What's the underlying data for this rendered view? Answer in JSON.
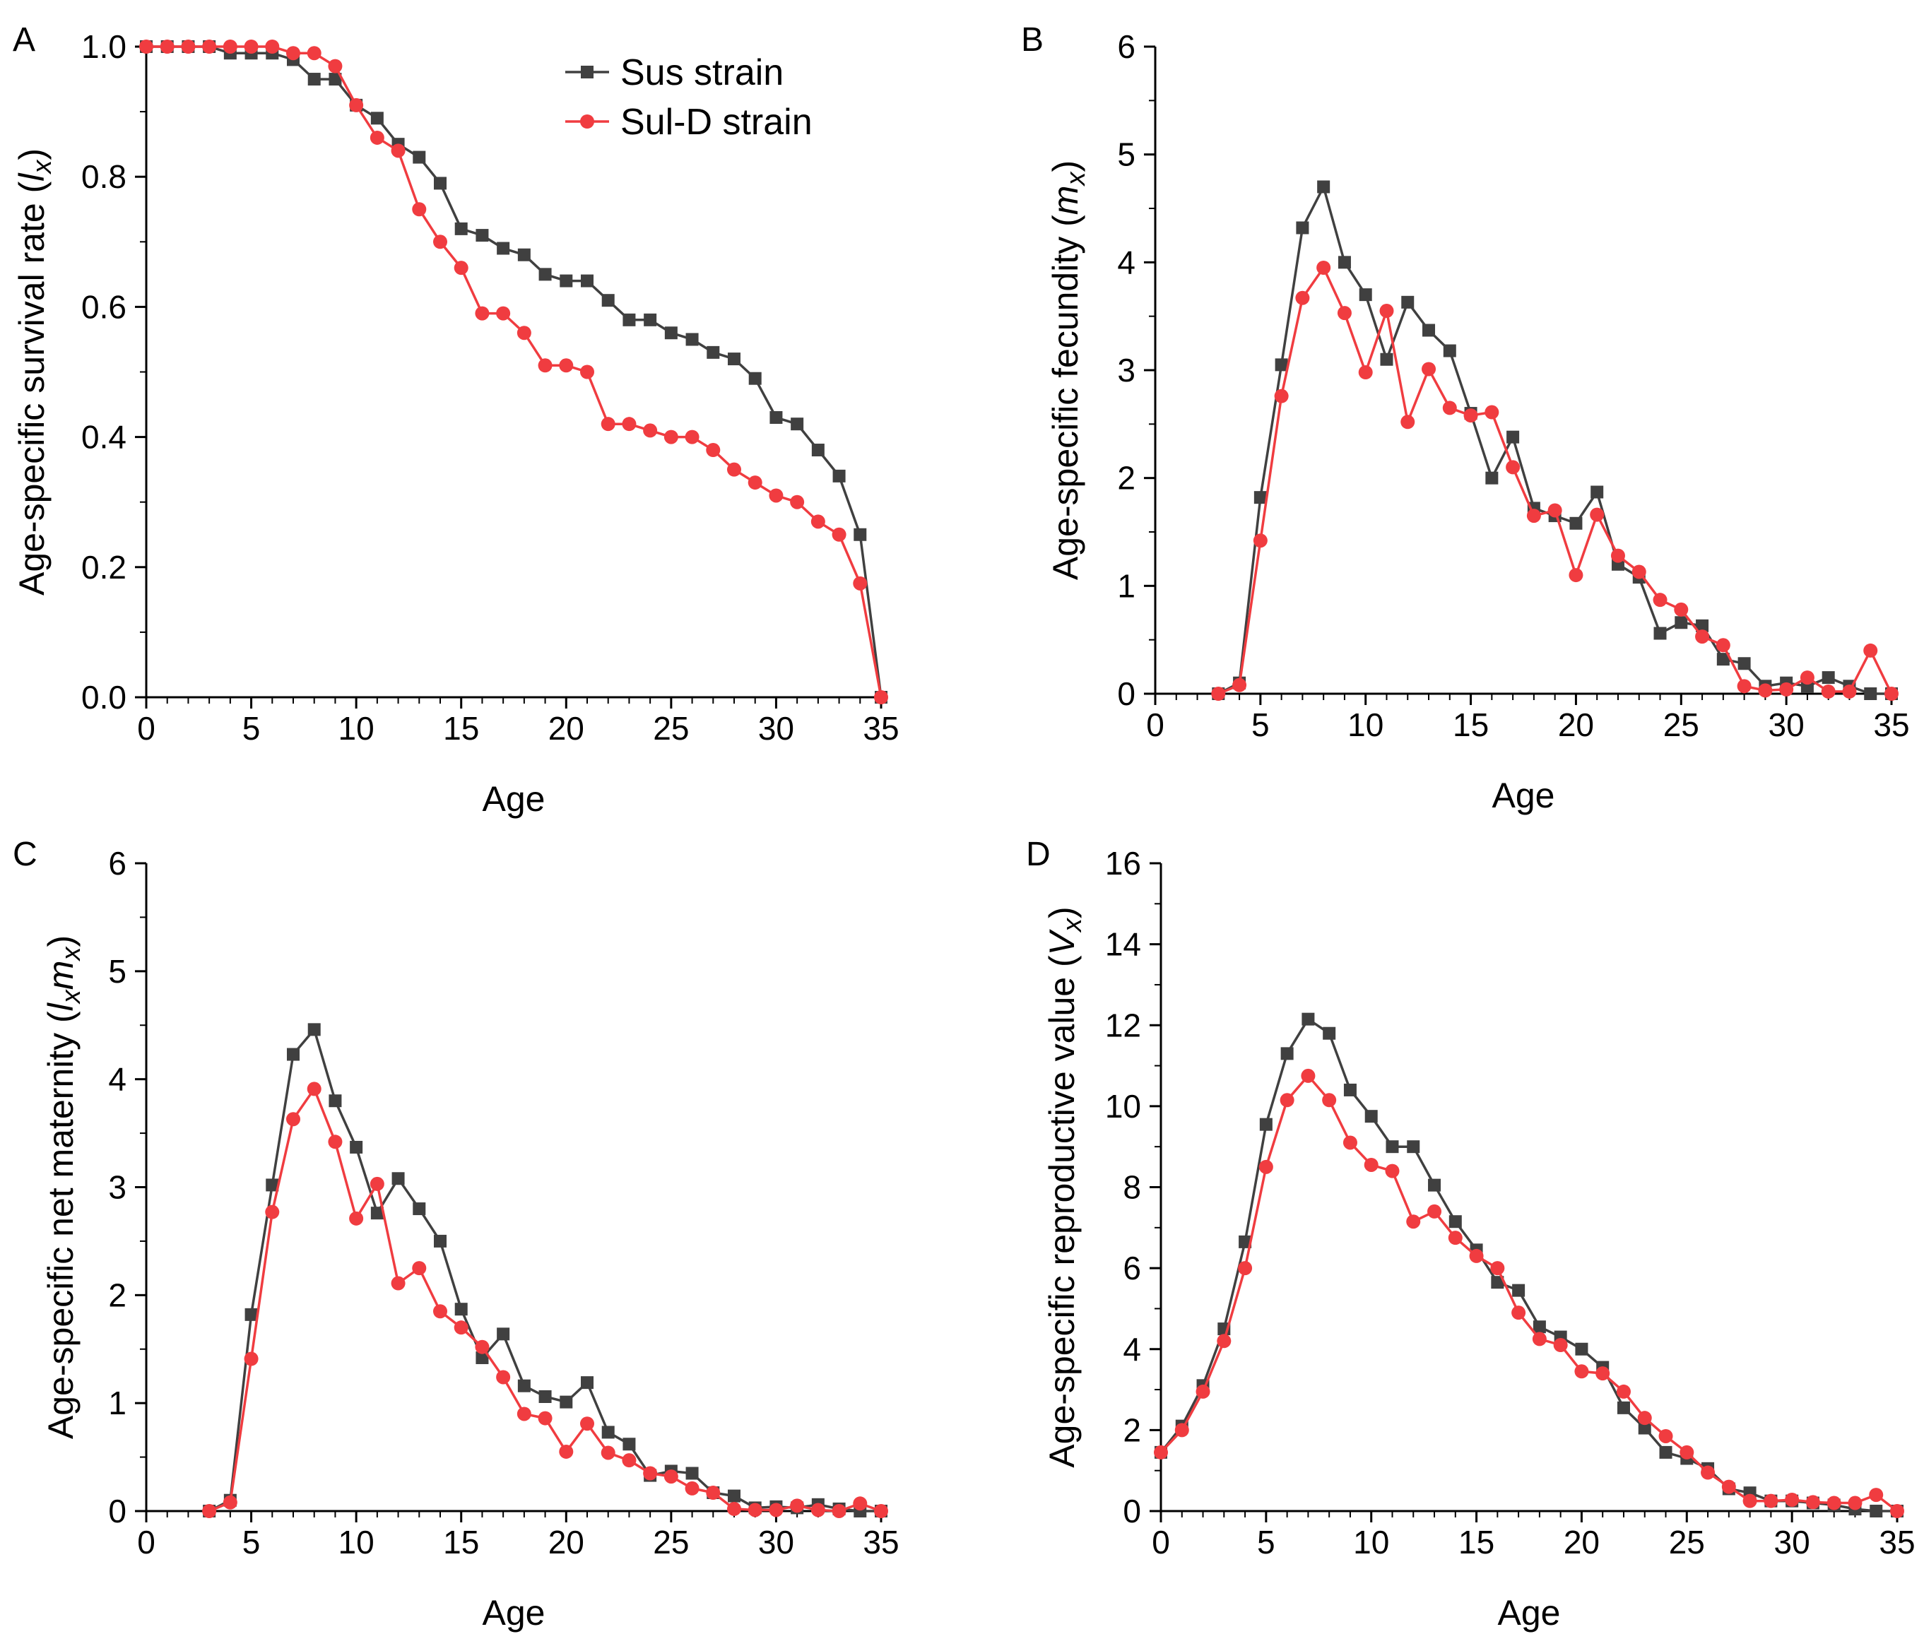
{
  "legend": {
    "series": [
      {
        "name": "Sus strain",
        "color": "#404040",
        "marker": "square"
      },
      {
        "name": "Sul-D strain",
        "color": "#f03c40",
        "marker": "circle"
      }
    ]
  },
  "chart_data": [
    {
      "panel": "A",
      "type": "line",
      "xlabel": "Age",
      "ylabel_main": "Age-specific survival rate (",
      "ylabel_italic": "l",
      "ylabel_sub": "x",
      "ylabel_end": ")",
      "xlim": [
        0,
        35
      ],
      "ylim": [
        0,
        1.0
      ],
      "xticks": [
        0,
        5,
        10,
        15,
        20,
        25,
        30,
        35
      ],
      "xtick_labels": [
        "0",
        "5",
        "10",
        "15",
        "20",
        "25",
        "30",
        "35"
      ],
      "yticks": [
        0,
        0.2,
        0.4,
        0.6,
        0.8,
        1.0
      ],
      "ytick_labels": [
        "0.0",
        "0.2",
        "0.4",
        "0.6",
        "0.8",
        "1.0"
      ],
      "yminor": 2,
      "x": [
        0,
        1,
        2,
        3,
        4,
        5,
        6,
        7,
        8,
        9,
        10,
        11,
        12,
        13,
        14,
        15,
        16,
        17,
        18,
        19,
        20,
        21,
        22,
        23,
        24,
        25,
        26,
        27,
        28,
        29,
        30,
        31,
        32,
        33,
        34,
        35
      ],
      "series": [
        {
          "name": "Sus strain",
          "values": [
            1.0,
            1.0,
            1.0,
            1.0,
            0.99,
            0.99,
            0.99,
            0.98,
            0.95,
            0.95,
            0.91,
            0.89,
            0.85,
            0.83,
            0.79,
            0.72,
            0.71,
            0.69,
            0.68,
            0.65,
            0.64,
            0.64,
            0.61,
            0.58,
            0.58,
            0.56,
            0.55,
            0.53,
            0.52,
            0.49,
            0.43,
            0.42,
            0.38,
            0.34,
            0.25,
            0.0
          ]
        },
        {
          "name": "Sul-D strain",
          "values": [
            1.0,
            1.0,
            1.0,
            1.0,
            1.0,
            1.0,
            1.0,
            0.99,
            0.99,
            0.97,
            0.91,
            0.86,
            0.84,
            0.75,
            0.7,
            0.66,
            0.59,
            0.59,
            0.56,
            0.51,
            0.51,
            0.5,
            0.42,
            0.42,
            0.41,
            0.4,
            0.4,
            0.38,
            0.35,
            0.33,
            0.31,
            0.3,
            0.27,
            0.25,
            0.175,
            0.0
          ]
        }
      ]
    },
    {
      "panel": "B",
      "type": "line",
      "xlabel": "Age",
      "ylabel_main": "Age-specific fecundity (",
      "ylabel_italic": "m",
      "ylabel_sub": "x",
      "ylabel_end": ")",
      "xlim": [
        0,
        35
      ],
      "ylim": [
        0,
        6
      ],
      "xticks": [
        0,
        5,
        10,
        15,
        20,
        25,
        30,
        35
      ],
      "xtick_labels": [
        "0",
        "5",
        "10",
        "15",
        "20",
        "25",
        "30",
        "35"
      ],
      "yticks": [
        0,
        1,
        2,
        3,
        4,
        5,
        6
      ],
      "ytick_labels": [
        "0",
        "1",
        "2",
        "3",
        "4",
        "5",
        "6"
      ],
      "yminor": 2,
      "x": [
        3,
        4,
        5,
        6,
        7,
        8,
        9,
        10,
        11,
        12,
        13,
        14,
        15,
        16,
        17,
        18,
        19,
        20,
        21,
        22,
        23,
        24,
        25,
        26,
        27,
        28,
        29,
        30,
        31,
        32,
        33,
        34,
        35
      ],
      "series": [
        {
          "name": "Sus strain",
          "values": [
            0,
            0.1,
            1.82,
            3.05,
            4.32,
            4.7,
            4.0,
            3.7,
            3.1,
            3.63,
            3.37,
            3.18,
            2.6,
            2.0,
            2.38,
            1.72,
            1.65,
            1.58,
            1.87,
            1.2,
            1.08,
            0.56,
            0.66,
            0.63,
            0.32,
            0.28,
            0.07,
            0.1,
            0.07,
            0.15,
            0.07,
            0.0,
            0.0
          ]
        },
        {
          "name": "Sul-D strain",
          "values": [
            0,
            0.08,
            1.42,
            2.76,
            3.67,
            3.95,
            3.53,
            2.98,
            3.55,
            2.52,
            3.01,
            2.65,
            2.58,
            2.61,
            2.1,
            1.65,
            1.7,
            1.1,
            1.66,
            1.28,
            1.13,
            0.87,
            0.78,
            0.53,
            0.45,
            0.07,
            0.03,
            0.04,
            0.15,
            0.02,
            0.02,
            0.4,
            0.0
          ]
        }
      ]
    },
    {
      "panel": "C",
      "type": "line",
      "xlabel": "Age",
      "ylabel_main": "Age-specific net maternity (",
      "ylabel_italic": "l",
      "ylabel_sub": "x",
      "ylabel_italic2": "m",
      "ylabel_sub2": "x",
      "ylabel_end": ")",
      "xlim": [
        0,
        35
      ],
      "ylim": [
        0,
        6
      ],
      "xticks": [
        0,
        5,
        10,
        15,
        20,
        25,
        30,
        35
      ],
      "xtick_labels": [
        "0",
        "5",
        "10",
        "15",
        "20",
        "25",
        "30",
        "35"
      ],
      "yticks": [
        0,
        1,
        2,
        3,
        4,
        5,
        6
      ],
      "ytick_labels": [
        "0",
        "1",
        "2",
        "3",
        "4",
        "5",
        "6"
      ],
      "yminor": 2,
      "x": [
        3,
        4,
        5,
        6,
        7,
        8,
        9,
        10,
        11,
        12,
        13,
        14,
        15,
        16,
        17,
        18,
        19,
        20,
        21,
        22,
        23,
        24,
        25,
        26,
        27,
        28,
        29,
        30,
        31,
        32,
        33,
        34,
        35
      ],
      "series": [
        {
          "name": "Sus strain",
          "values": [
            0,
            0.1,
            1.82,
            3.02,
            4.23,
            4.46,
            3.8,
            3.37,
            2.76,
            3.08,
            2.8,
            2.5,
            1.87,
            1.42,
            1.64,
            1.16,
            1.06,
            1.01,
            1.19,
            0.73,
            0.62,
            0.33,
            0.37,
            0.35,
            0.17,
            0.14,
            0.03,
            0.04,
            0.03,
            0.06,
            0.02,
            0.0,
            0.0
          ]
        },
        {
          "name": "Sul-D strain",
          "values": [
            0,
            0.08,
            1.41,
            2.77,
            3.63,
            3.91,
            3.42,
            2.71,
            3.03,
            2.11,
            2.25,
            1.85,
            1.7,
            1.52,
            1.24,
            0.9,
            0.86,
            0.55,
            0.81,
            0.54,
            0.47,
            0.35,
            0.32,
            0.21,
            0.17,
            0.02,
            0.01,
            0.01,
            0.05,
            0.01,
            0.0,
            0.07,
            0.0
          ]
        }
      ]
    },
    {
      "panel": "D",
      "type": "line",
      "xlabel": "Age",
      "ylabel_main": "Age-specific reproductive value (",
      "ylabel_italic": "V",
      "ylabel_sub": "x",
      "ylabel_end": ")",
      "xlim": [
        0,
        35
      ],
      "ylim": [
        0,
        16
      ],
      "xticks": [
        0,
        5,
        10,
        15,
        20,
        25,
        30,
        35
      ],
      "xtick_labels": [
        "0",
        "5",
        "10",
        "15",
        "20",
        "25",
        "30",
        "35"
      ],
      "yticks": [
        0,
        2,
        4,
        6,
        8,
        10,
        12,
        14,
        16
      ],
      "ytick_labels": [
        "0",
        "2",
        "4",
        "6",
        "8",
        "10",
        "12",
        "14",
        "16"
      ],
      "yminor": 2,
      "x": [
        0,
        1,
        2,
        3,
        4,
        5,
        6,
        7,
        8,
        9,
        10,
        11,
        12,
        13,
        14,
        15,
        16,
        17,
        18,
        19,
        20,
        21,
        22,
        23,
        24,
        25,
        26,
        27,
        28,
        29,
        30,
        31,
        32,
        33,
        34,
        35
      ],
      "series": [
        {
          "name": "Sus strain",
          "values": [
            1.45,
            2.1,
            3.1,
            4.5,
            6.65,
            9.55,
            11.3,
            12.15,
            11.8,
            10.4,
            9.75,
            9.0,
            9.0,
            8.05,
            7.15,
            6.45,
            5.65,
            5.45,
            4.55,
            4.3,
            4.0,
            3.55,
            2.55,
            2.05,
            1.45,
            1.3,
            1.05,
            0.55,
            0.45,
            0.25,
            0.25,
            0.2,
            0.15,
            0.05,
            0.0,
            0.0
          ]
        },
        {
          "name": "Sul-D strain",
          "values": [
            1.45,
            2.0,
            2.95,
            4.2,
            6.0,
            8.5,
            10.15,
            10.75,
            10.15,
            9.1,
            8.55,
            8.4,
            7.15,
            7.4,
            6.75,
            6.3,
            6.0,
            4.9,
            4.25,
            4.1,
            3.45,
            3.4,
            2.95,
            2.3,
            1.85,
            1.45,
            0.95,
            0.6,
            0.25,
            0.25,
            0.28,
            0.22,
            0.2,
            0.2,
            0.4,
            0.0
          ]
        }
      ]
    }
  ]
}
